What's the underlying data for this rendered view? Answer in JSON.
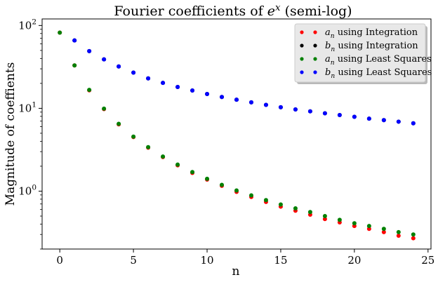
{
  "chart_data": {
    "type": "scatter",
    "title": "Fourier coefficients of e^x (semi-log)",
    "xlabel": "n",
    "ylabel": "Magnitude of coeffients",
    "xlim": [
      -1.2,
      25.2
    ],
    "ylim": [
      0.2,
      120
    ],
    "yscale": "log",
    "xticks": [
      0,
      5,
      10,
      15,
      20,
      25
    ],
    "xtick_labels": [
      "0",
      "5",
      "10",
      "15",
      "20",
      "25"
    ],
    "yticks": [
      1,
      10,
      100
    ],
    "ytick_labels": [
      "10^0",
      "10^1",
      "10^2"
    ],
    "grid": false,
    "legend_position": "top-right",
    "series": [
      {
        "name": "a_n using Integration",
        "color": "#ff0000",
        "x": [
          0,
          1,
          2,
          3,
          4,
          5,
          6,
          7,
          8,
          9,
          10,
          11,
          12,
          13,
          14,
          15,
          16,
          17,
          18,
          19,
          20,
          21,
          22,
          23,
          24
        ],
        "values": [
          82,
          33,
          16.5,
          9.8,
          6.4,
          4.5,
          3.35,
          2.58,
          2.05,
          1.66,
          1.38,
          1.16,
          0.98,
          0.85,
          0.74,
          0.65,
          0.58,
          0.52,
          0.46,
          0.42,
          0.38,
          0.35,
          0.32,
          0.29,
          0.27
        ]
      },
      {
        "name": "b_n using Integration",
        "color": "#000000",
        "x": [
          1,
          2,
          3,
          4,
          5,
          6,
          7,
          8,
          9,
          10,
          11,
          12,
          13,
          14,
          15,
          16,
          17,
          18,
          19,
          20,
          21,
          22,
          23,
          24
        ],
        "values": [
          66,
          49,
          39,
          32,
          27,
          23,
          20.3,
          18.1,
          16.4,
          14.9,
          13.7,
          12.7,
          11.8,
          11.0,
          10.3,
          9.7,
          9.2,
          8.7,
          8.3,
          7.9,
          7.5,
          7.2,
          6.9,
          6.6
        ]
      },
      {
        "name": "a_n using Least Squares",
        "color": "#008000",
        "x": [
          0,
          1,
          2,
          3,
          4,
          5,
          6,
          7,
          8,
          9,
          10,
          11,
          12,
          13,
          14,
          15,
          16,
          17,
          18,
          19,
          20,
          21,
          22,
          23,
          24
        ],
        "values": [
          82,
          33,
          16.7,
          9.9,
          6.5,
          4.55,
          3.4,
          2.62,
          2.09,
          1.7,
          1.41,
          1.19,
          1.02,
          0.89,
          0.78,
          0.69,
          0.62,
          0.56,
          0.5,
          0.45,
          0.41,
          0.38,
          0.35,
          0.32,
          0.3
        ]
      },
      {
        "name": "b_n using Least Squares",
        "color": "#0000ff",
        "x": [
          1,
          2,
          3,
          4,
          5,
          6,
          7,
          8,
          9,
          10,
          11,
          12,
          13,
          14,
          15,
          16,
          17,
          18,
          19,
          20,
          21,
          22,
          23,
          24
        ],
        "values": [
          66,
          49,
          39,
          32,
          27,
          23,
          20.3,
          18.1,
          16.4,
          14.9,
          13.7,
          12.7,
          11.8,
          11.0,
          10.3,
          9.7,
          9.2,
          8.7,
          8.3,
          7.9,
          7.5,
          7.2,
          6.9,
          6.6
        ]
      }
    ]
  }
}
